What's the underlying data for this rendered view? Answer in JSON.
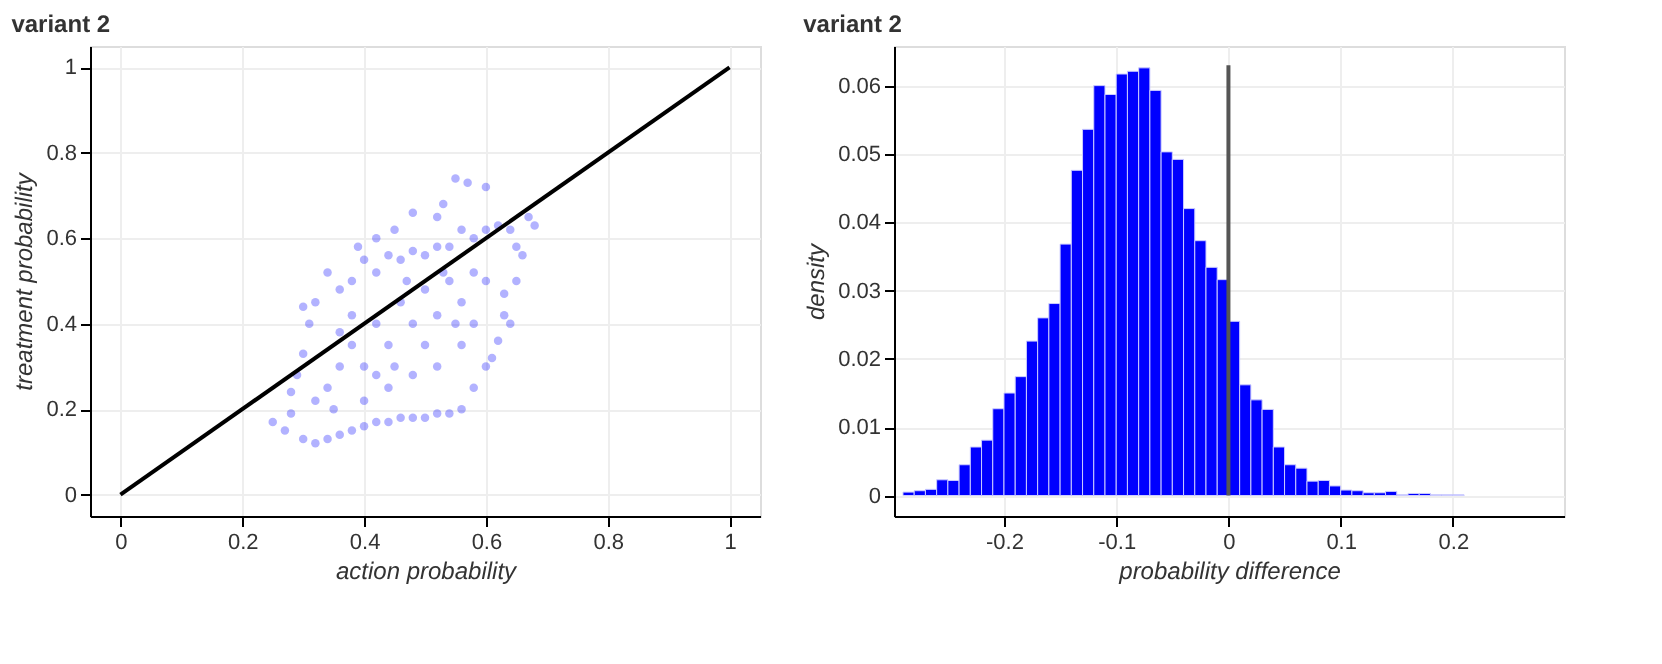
{
  "chart_data": [
    {
      "type": "scatter",
      "title": "variant 2",
      "xlabel": "action probability",
      "ylabel": "treatment probability",
      "xlim": [
        -0.05,
        1.05
      ],
      "ylim": [
        -0.05,
        1.05
      ],
      "xticks": [
        0,
        0.2,
        0.4,
        0.6,
        0.8,
        1
      ],
      "yticks": [
        0,
        0.2,
        0.4,
        0.6,
        0.8,
        1
      ],
      "grid": true,
      "series": [
        {
          "type": "scatter",
          "marker": "circle",
          "color": "#0000ff",
          "x": [
            0.25,
            0.27,
            0.28,
            0.3,
            0.32,
            0.34,
            0.36,
            0.38,
            0.4,
            0.42,
            0.44,
            0.46,
            0.48,
            0.5,
            0.52,
            0.54,
            0.56,
            0.58,
            0.6,
            0.62,
            0.63,
            0.65,
            0.66,
            0.68,
            0.67,
            0.64,
            0.62,
            0.6,
            0.58,
            0.56,
            0.54,
            0.52,
            0.5,
            0.48,
            0.46,
            0.44,
            0.42,
            0.4,
            0.38,
            0.36,
            0.34,
            0.32,
            0.3,
            0.31,
            0.3,
            0.29,
            0.28,
            0.57,
            0.55,
            0.6,
            0.48,
            0.53,
            0.39,
            0.42,
            0.45,
            0.65,
            0.63,
            0.64,
            0.61,
            0.52,
            0.34,
            0.36,
            0.38,
            0.4,
            0.42,
            0.44,
            0.46,
            0.48,
            0.5,
            0.52,
            0.54,
            0.56,
            0.58,
            0.4,
            0.44,
            0.48,
            0.52,
            0.56,
            0.35,
            0.38,
            0.45,
            0.5,
            0.55,
            0.6,
            0.32,
            0.36,
            0.42,
            0.47,
            0.53,
            0.58
          ],
          "values": [
            0.17,
            0.15,
            0.19,
            0.13,
            0.12,
            0.13,
            0.14,
            0.15,
            0.16,
            0.17,
            0.17,
            0.18,
            0.18,
            0.18,
            0.19,
            0.19,
            0.2,
            0.25,
            0.3,
            0.36,
            0.42,
            0.5,
            0.56,
            0.63,
            0.65,
            0.62,
            0.63,
            0.62,
            0.6,
            0.62,
            0.58,
            0.58,
            0.56,
            0.57,
            0.55,
            0.56,
            0.52,
            0.55,
            0.5,
            0.48,
            0.52,
            0.45,
            0.44,
            0.4,
            0.33,
            0.28,
            0.24,
            0.73,
            0.74,
            0.72,
            0.66,
            0.68,
            0.58,
            0.6,
            0.62,
            0.58,
            0.47,
            0.4,
            0.32,
            0.65,
            0.25,
            0.3,
            0.35,
            0.3,
            0.4,
            0.35,
            0.45,
            0.4,
            0.48,
            0.42,
            0.5,
            0.45,
            0.52,
            0.22,
            0.25,
            0.28,
            0.3,
            0.35,
            0.2,
            0.42,
            0.3,
            0.35,
            0.4,
            0.5,
            0.22,
            0.38,
            0.28,
            0.5,
            0.52,
            0.4
          ]
        },
        {
          "type": "line",
          "color": "#000000",
          "x": [
            0,
            1
          ],
          "values": [
            0,
            1
          ]
        }
      ]
    },
    {
      "type": "histogram",
      "title": "variant 2",
      "xlabel": "probability difference",
      "ylabel": "density",
      "xlim": [
        -0.298,
        0.299
      ],
      "ylim": [
        -0.003,
        0.0658
      ],
      "xticks": [
        -0.2,
        -0.1,
        0,
        0.1,
        0.2
      ],
      "yticks": [
        0,
        0.01,
        0.02,
        0.03,
        0.04,
        0.05,
        0.06
      ],
      "grid": true,
      "color": "#0000ff",
      "bins": [
        -0.29,
        -0.28,
        -0.27,
        -0.26,
        -0.25,
        -0.24,
        -0.23,
        -0.22,
        -0.21,
        -0.2,
        -0.19,
        -0.18,
        -0.17,
        -0.16,
        -0.15,
        -0.14,
        -0.13,
        -0.12,
        -0.11,
        -0.1,
        -0.09,
        -0.08,
        -0.07,
        -0.06,
        -0.05,
        -0.04,
        -0.03,
        -0.02,
        -0.01,
        0,
        0.01,
        0.02,
        0.03,
        0.04,
        0.05,
        0.06,
        0.07,
        0.08,
        0.09,
        0.1,
        0.11,
        0.12,
        0.13,
        0.14,
        0.15,
        0.16,
        0.17,
        0.18,
        0.19,
        0.2,
        0.21
      ],
      "values": [
        0.0005,
        0.0007,
        0.0009,
        0.0023,
        0.0022,
        0.0045,
        0.0071,
        0.0081,
        0.0127,
        0.015,
        0.0174,
        0.0226,
        0.026,
        0.0281,
        0.0368,
        0.0476,
        0.0536,
        0.06,
        0.0587,
        0.0617,
        0.0621,
        0.0626,
        0.0593,
        0.0503,
        0.0492,
        0.042,
        0.0373,
        0.0334,
        0.0316,
        0.0255,
        0.0162,
        0.014,
        0.0126,
        0.0071,
        0.0045,
        0.004,
        0.0021,
        0.0022,
        0.0014,
        0.0008,
        0.0007,
        0.0004,
        0.0004,
        0.0006,
        0.0001,
        0.0003,
        0.0003,
        0.0001,
        0.0001,
        0.0001
      ],
      "series": [
        {
          "type": "line",
          "color": "#555555",
          "x": [
            0,
            0
          ],
          "values": [
            0,
            0.063
          ]
        }
      ]
    }
  ]
}
